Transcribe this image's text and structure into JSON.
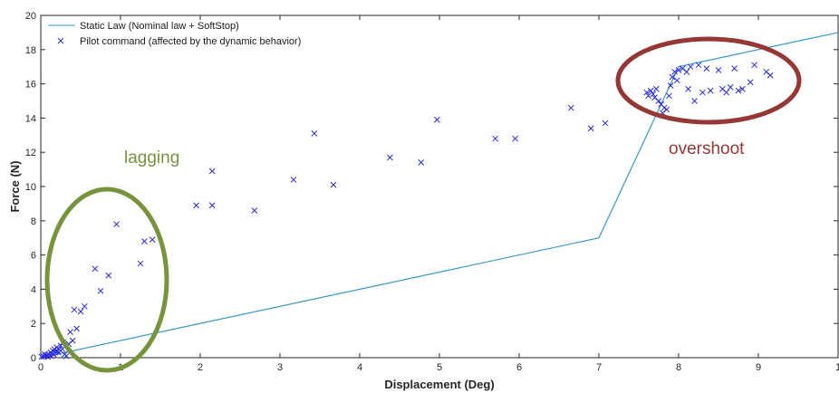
{
  "chart_data": {
    "type": "line",
    "title": "",
    "xlabel": "Displacement (Deg)",
    "ylabel": "Force (N)",
    "xlim": [
      0,
      10
    ],
    "ylim": [
      0,
      20
    ],
    "x_ticks": [
      "0",
      "1",
      "2",
      "3",
      "4",
      "5",
      "6",
      "7",
      "8",
      "9",
      "1"
    ],
    "y_ticks": [
      "0",
      "2",
      "4",
      "6",
      "8",
      "10",
      "12",
      "14",
      "16",
      "18",
      "20"
    ],
    "grid": false,
    "legend_position": "top-left",
    "series": [
      {
        "name": "Static Law (Nominal law + SoftStop)",
        "type": "line",
        "color": "#3a97c9",
        "x": [
          0,
          7,
          8,
          10
        ],
        "y": [
          0,
          7,
          17,
          19
        ]
      },
      {
        "name": "Pilot command (affected by the dynamic behavior)",
        "type": "scatter",
        "marker": "x",
        "color": "#2b2bd9",
        "x": [
          0.01,
          0.03,
          0.04,
          0.05,
          0.06,
          0.08,
          0.09,
          0.1,
          0.12,
          0.13,
          0.14,
          0.15,
          0.16,
          0.17,
          0.18,
          0.19,
          0.2,
          0.21,
          0.22,
          0.23,
          0.25,
          0.27,
          0.28,
          0.3,
          0.32,
          0.35,
          0.37,
          0.4,
          0.42,
          0.45,
          0.5,
          0.55,
          0.68,
          0.75,
          0.85,
          0.95,
          1.25,
          1.3,
          1.4,
          1.95,
          2.15,
          2.15,
          2.68,
          3.17,
          3.43,
          3.67,
          4.38,
          4.77,
          4.97,
          5.7,
          5.95,
          6.65,
          6.9,
          7.08,
          7.6,
          7.62,
          7.65,
          7.68,
          7.7,
          7.72,
          7.75,
          7.78,
          7.8,
          7.82,
          7.85,
          7.88,
          7.9,
          7.92,
          7.95,
          7.98,
          8.0,
          8.05,
          8.1,
          8.12,
          8.15,
          8.2,
          8.25,
          8.3,
          8.35,
          8.4,
          8.5,
          8.55,
          8.6,
          8.65,
          8.7,
          8.75,
          8.8,
          8.9,
          8.95,
          9.1,
          9.15
        ],
        "y": [
          0.05,
          0.1,
          0.05,
          0.2,
          0.1,
          0.15,
          0.05,
          0.2,
          0.3,
          0.1,
          0.25,
          0.4,
          0.2,
          0.5,
          0.3,
          0.35,
          0.6,
          0.4,
          0.3,
          0.5,
          0.7,
          0.5,
          0.9,
          0.2,
          0.1,
          0.8,
          1.5,
          1.0,
          2.8,
          1.7,
          2.7,
          3.0,
          5.2,
          3.9,
          4.8,
          7.8,
          5.5,
          6.8,
          6.9,
          8.9,
          10.9,
          8.9,
          8.6,
          10.4,
          13.1,
          10.1,
          11.7,
          11.4,
          13.9,
          12.8,
          12.8,
          14.6,
          13.4,
          13.7,
          15.5,
          15.3,
          15.6,
          15.4,
          15.2,
          15.7,
          15.0,
          14.8,
          14.3,
          14.6,
          14.5,
          15.3,
          15.9,
          16.4,
          16.7,
          16.2,
          16.8,
          16.9,
          16.7,
          15.7,
          17.0,
          15.0,
          17.1,
          15.5,
          16.9,
          15.6,
          16.8,
          15.7,
          15.5,
          15.8,
          16.9,
          15.6,
          15.7,
          16.1,
          17.1,
          16.7,
          16.5
        ]
      }
    ],
    "annotations": [
      {
        "text": "lagging",
        "color": "#6d8c2d"
      },
      {
        "text": "overshoot",
        "color": "#a3322d"
      }
    ]
  }
}
